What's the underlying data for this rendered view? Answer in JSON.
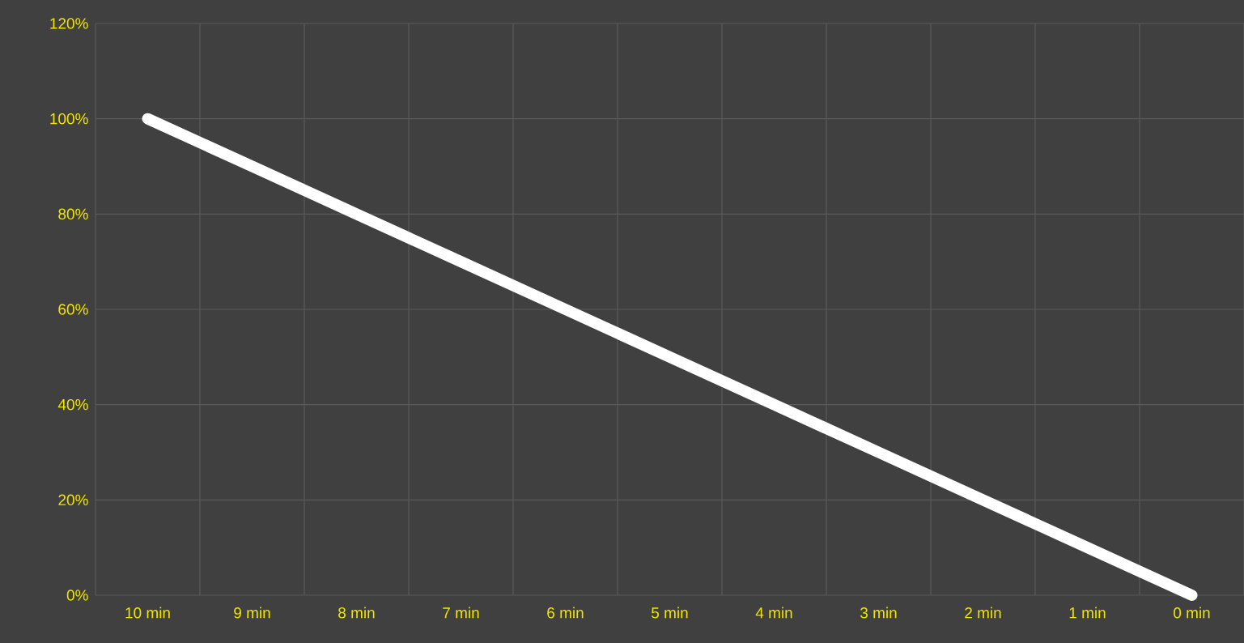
{
  "chart_data": {
    "type": "line",
    "categories": [
      "10 min",
      "9 min",
      "8 min",
      "7 min",
      "6 min",
      "5 min",
      "4 min",
      "3 min",
      "2 min",
      "1 min",
      "0 min"
    ],
    "values": [
      100,
      90,
      80,
      70,
      60,
      50,
      40,
      30,
      20,
      10,
      0
    ],
    "color": "#ffffff",
    "ylim": [
      0,
      120
    ],
    "yticks": [
      {
        "value": 0,
        "label": "0%"
      },
      {
        "value": 20,
        "label": "20%"
      },
      {
        "value": 40,
        "label": "40%"
      },
      {
        "value": 60,
        "label": "60%"
      },
      {
        "value": 80,
        "label": "80%"
      },
      {
        "value": 100,
        "label": "100%"
      },
      {
        "value": 120,
        "label": "120%"
      }
    ],
    "grid": true,
    "marker": "none",
    "line_style": "solid"
  }
}
